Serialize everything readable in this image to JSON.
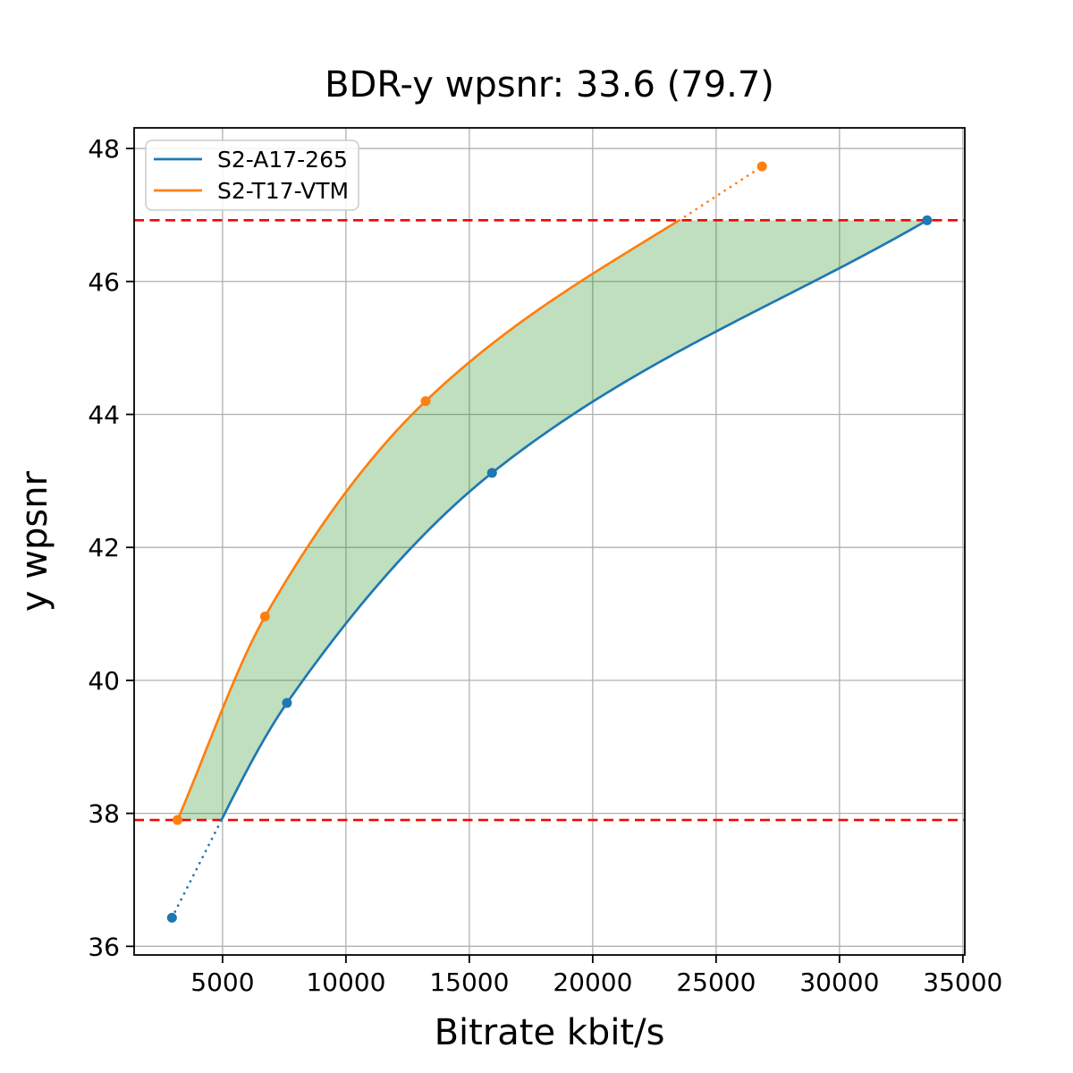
{
  "chart_data": {
    "type": "line",
    "title": "BDR-y wpsnr: 33.6 (79.7)",
    "xlabel": "Bitrate kbit/s",
    "ylabel": "y wpsnr",
    "xlim": [
      1417,
      35078
    ],
    "ylim": [
      35.87,
      48.31
    ],
    "xticks": [
      5000,
      10000,
      15000,
      20000,
      25000,
      30000,
      35000
    ],
    "yticks": [
      36,
      38,
      40,
      42,
      44,
      46,
      48
    ],
    "grid": true,
    "grid_color": "#b0b0b0",
    "legend_position": "upper-left",
    "legend_entries": [
      "S2-A17-265",
      "S2-T17-VTM"
    ],
    "series": [
      {
        "name": "S2-A17-265",
        "color": "#1f77b4",
        "points": [
          [
            2950,
            36.43
          ],
          [
            7610,
            39.66
          ],
          [
            15920,
            43.12
          ],
          [
            33550,
            46.92
          ]
        ]
      },
      {
        "name": "S2-T17-VTM",
        "color": "#ff7f0e",
        "points": [
          [
            3175,
            37.9
          ],
          [
            6720,
            40.96
          ],
          [
            13230,
            44.2
          ],
          [
            26860,
            47.73
          ]
        ]
      }
    ],
    "overlap_region": {
      "low_psnr": 37.9,
      "high_psnr": 46.92,
      "bound_line_color": "#ff0000",
      "fill_color": "rgba(0,128,0,0.25)"
    }
  }
}
